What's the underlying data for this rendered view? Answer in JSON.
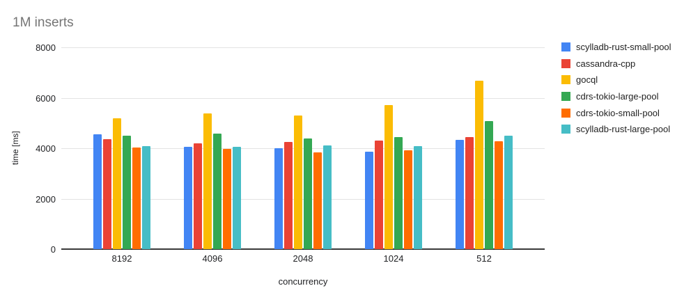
{
  "chart_data": {
    "type": "bar",
    "title": "1M inserts",
    "xlabel": "concurrency",
    "ylabel": "time [ms]",
    "ylim": [
      0,
      8000
    ],
    "yticks": [
      0,
      2000,
      4000,
      6000,
      8000
    ],
    "grid": true,
    "legend_position": "right",
    "categories": [
      "8192",
      "4096",
      "2048",
      "1024",
      "512"
    ],
    "series": [
      {
        "name": "scylladb-rust-small-pool",
        "color": "#4285F4",
        "values": [
          4550,
          4050,
          3990,
          3850,
          4340
        ]
      },
      {
        "name": "cassandra-cpp",
        "color": "#EA4335",
        "values": [
          4350,
          4190,
          4260,
          4300,
          4450
        ]
      },
      {
        "name": "gocql",
        "color": "#FBBC04",
        "values": [
          5200,
          5380,
          5300,
          5710,
          6690
        ]
      },
      {
        "name": "cdrs-tokio-large-pool",
        "color": "#34A853",
        "values": [
          4510,
          4590,
          4380,
          4450,
          5080
        ]
      },
      {
        "name": "cdrs-tokio-small-pool",
        "color": "#FF6D01",
        "values": [
          4030,
          3970,
          3830,
          3930,
          4290
        ]
      },
      {
        "name": "scylladb-rust-large-pool",
        "color": "#46BDC6",
        "values": [
          4080,
          4060,
          4120,
          4070,
          4500
        ]
      }
    ]
  }
}
